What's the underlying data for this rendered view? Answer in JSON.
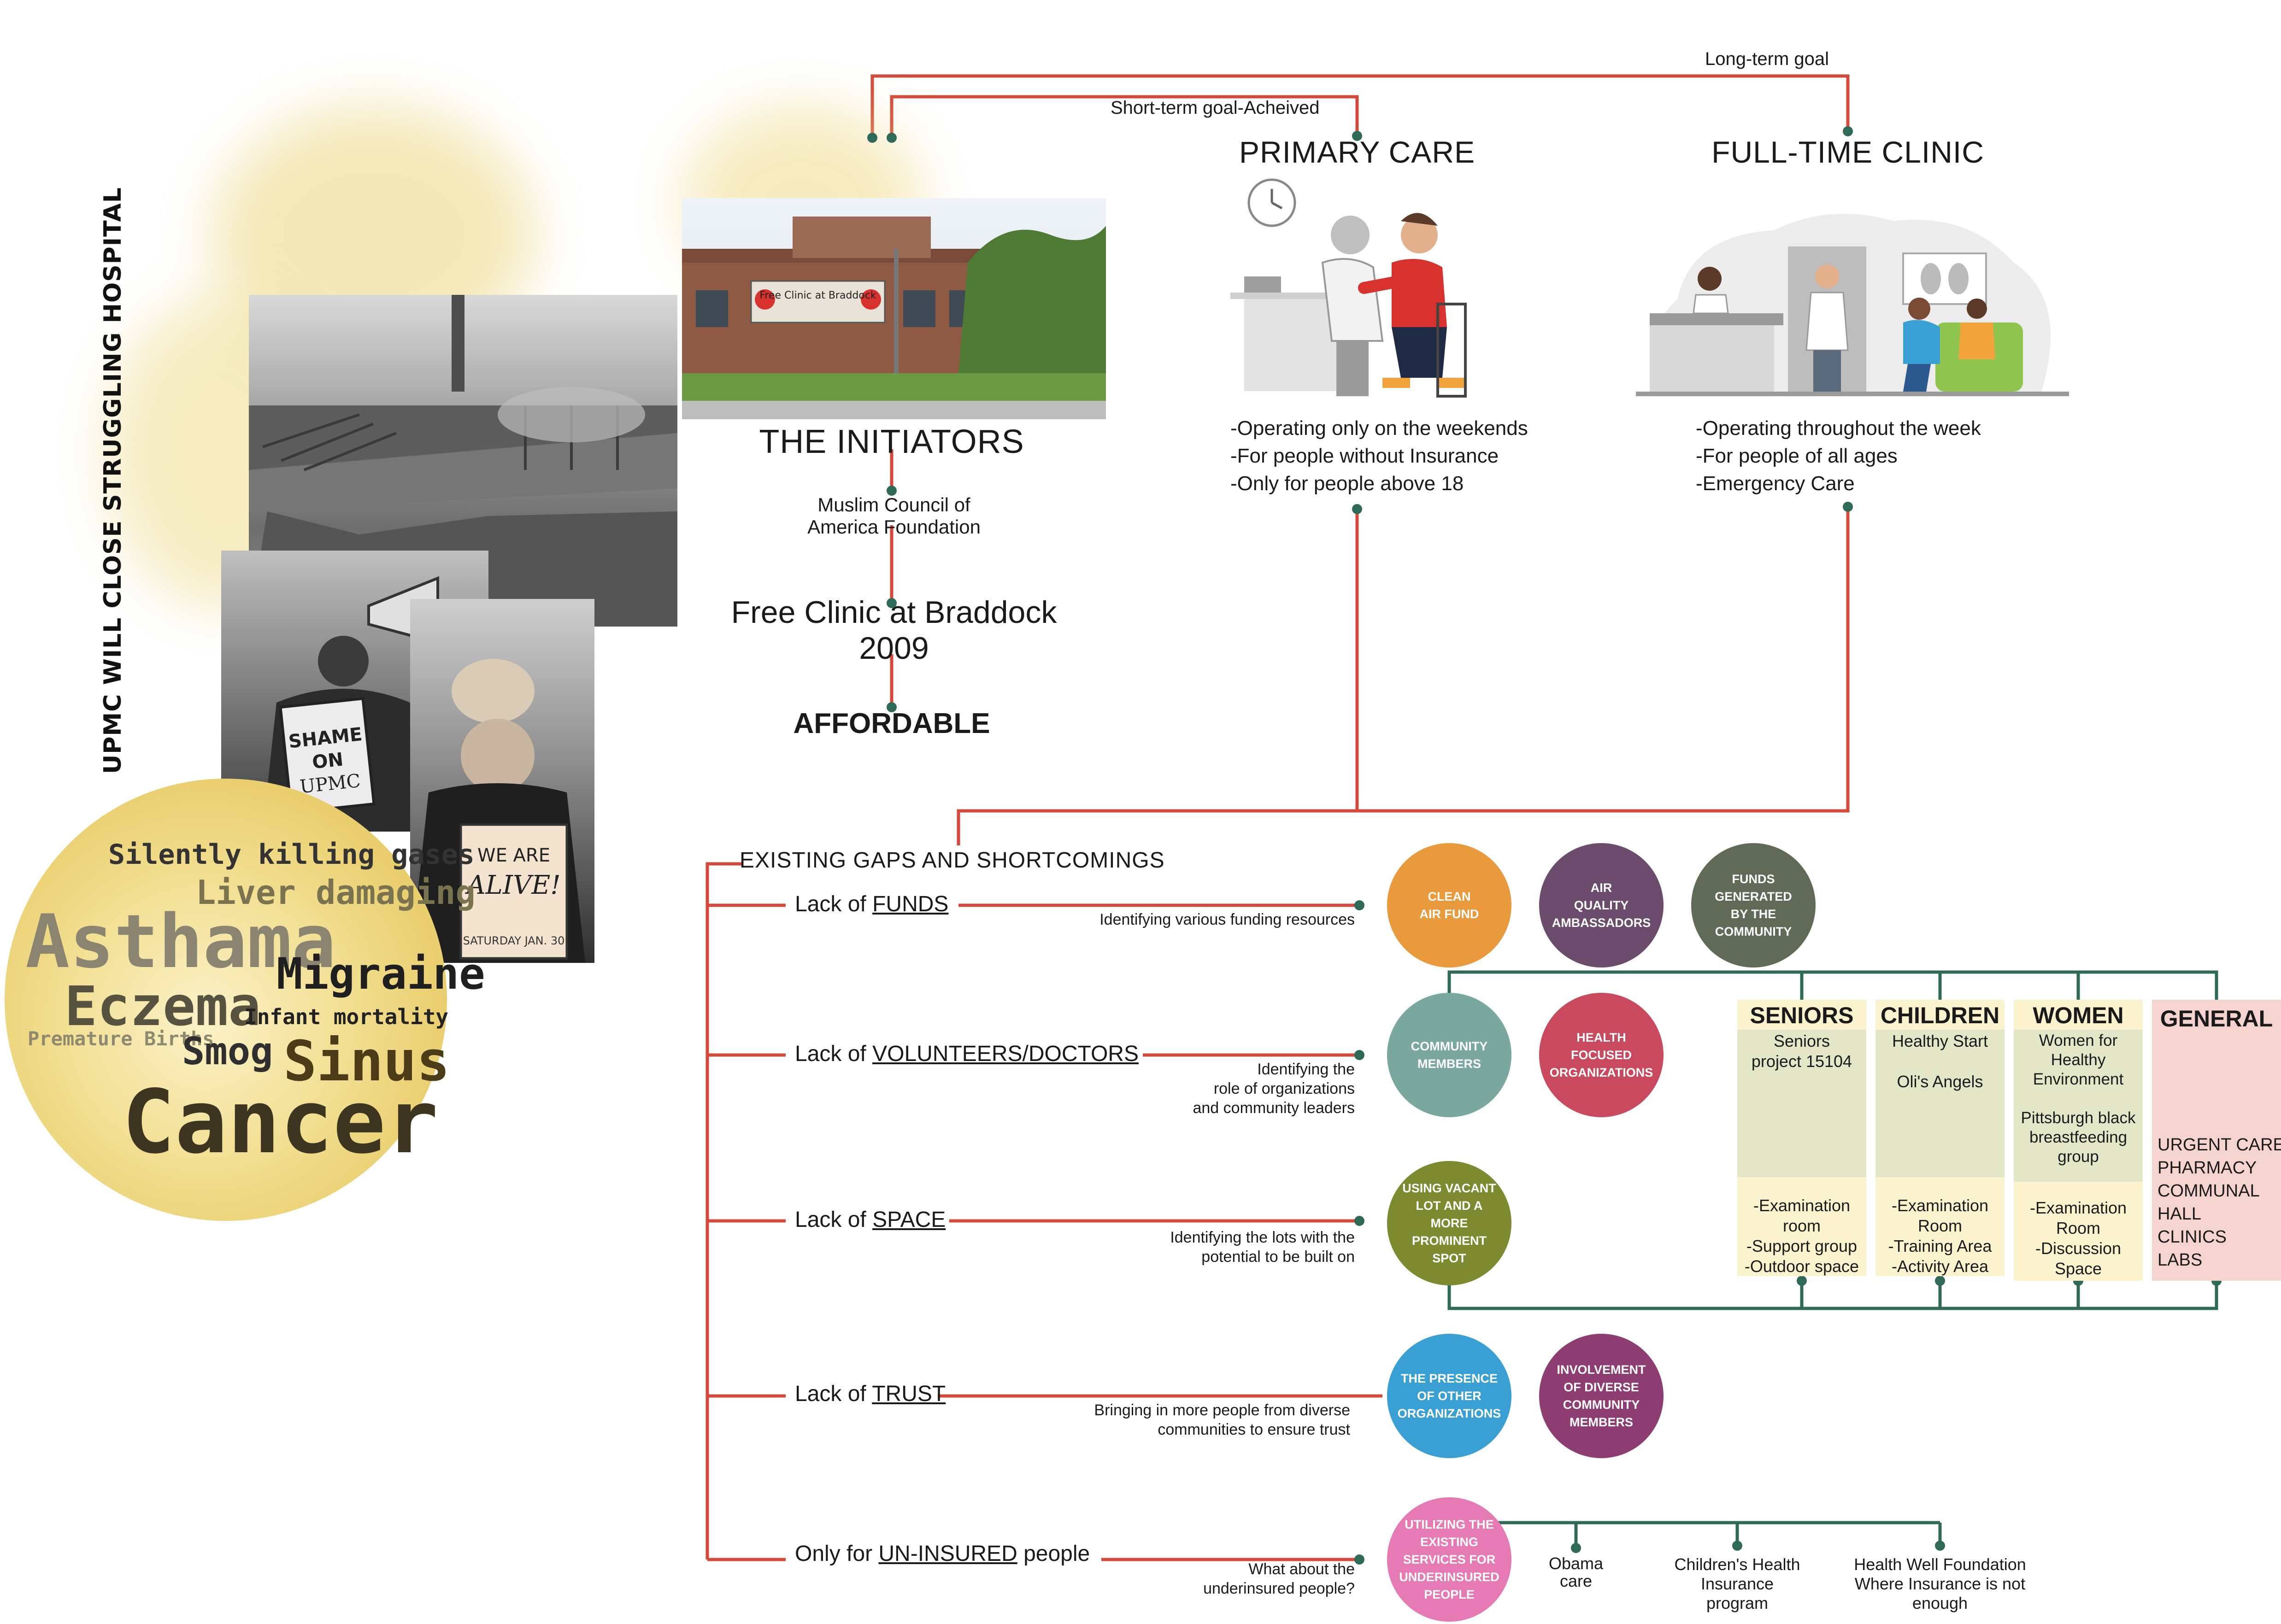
{
  "colors": {
    "red_line": "#d4493a",
    "green_line": "#2f6a58",
    "dot": "#2f6a58",
    "orange": "#e99a3c",
    "purple": "#6b4c6d",
    "gray_green": "#5f6a57",
    "teal": "#7aa89f",
    "crimson": "#c94a5e",
    "olive": "#7d8a2f",
    "blue": "#3aa0d3",
    "magenta": "#8e3d72",
    "pink": "#e67ab4",
    "group_green": "#e3e7c8",
    "group_cream": "#fbf3cd",
    "group_pink": "#f5d4d0"
  },
  "collage": {
    "headline": "UPMC WILL CLOSE STRUGGLING HOSPITAL",
    "sign_shame": "SHAME ON UPMC",
    "sign_alive": "WE ARE ALIVE!",
    "clinic_sign": "Free Clinic at Braddock",
    "words": [
      "Silently killing gases",
      "Liver damaging",
      "Asthama",
      "Migraine",
      "Eczema",
      "Infant mortality",
      "Premature Births",
      "Smog",
      "Sinus",
      "Cancer"
    ]
  },
  "goals": {
    "long_term": "Long-term goal",
    "short_term": "Short-term goal-Acheived"
  },
  "initiators": {
    "title": "THE INITIATORS",
    "org": "Muslim Council of\nAmerica Foundation",
    "clinic": "Free Clinic at Braddock",
    "year": "2009",
    "tag": "AFFORDABLE"
  },
  "primary_care": {
    "title": "PRIMARY CARE",
    "items": "-Operating only on the weekends\n-For people without Insurance\n-Only for people above 18"
  },
  "full_time": {
    "title": "FULL-TIME CLINIC",
    "items": "-Operating throughout the week\n-For people of all ages\n-Emergency Care"
  },
  "gaps": {
    "title": "EXISTING GAPS AND SHORTCOMINGS",
    "rows": [
      {
        "prefix": "Lack of ",
        "key": "FUNDS",
        "suffix": "",
        "note": "Identifying various funding resources"
      },
      {
        "prefix": "Lack of ",
        "key": "VOLUNTEERS/DOCTORS",
        "suffix": "",
        "note": "Identifying the\nrole of organizations\nand community leaders"
      },
      {
        "prefix": "Lack of ",
        "key": "SPACE",
        "suffix": "",
        "note": "Identifying the lots with the\npotential to be built on"
      },
      {
        "prefix": "Lack of ",
        "key": "TRUST",
        "suffix": "",
        "note": "Bringing in more people from diverse\ncommunities to ensure trust"
      },
      {
        "prefix": "Only for ",
        "key": "UN-INSURED",
        "suffix": " people",
        "note": "What about the\nunderinsured people?"
      }
    ]
  },
  "bubbles": {
    "clean_air": "CLEAN\nAIR FUND",
    "air_quality": "AIR\nQUALITY\nAMBASSADORS",
    "funds_generated": "FUNDS\nGENERATED\nBY THE\nCOMMUNITY",
    "community_members": "COMMUNITY\nMEMBERS",
    "health_orgs": "HEALTH\nFOCUSED\nORGANIZATIONS",
    "vacant_lot": "USING VACANT\nLOT AND A\nMORE\nPROMINENT\nSPOT",
    "presence_orgs": "THE PRESENCE\nOF OTHER\nORGANIZATIONS",
    "diverse_members": "INVOLVEMENT\nOF DIVERSE\nCOMMUNITY\nMEMBERS",
    "existing_services": "UTILIZING THE\nEXISTING\nSERVICES FOR\nUNDERINSURED\nPEOPLE"
  },
  "groups": {
    "seniors": {
      "title": "SENIORS",
      "programs": "Seniors\nproject 15104",
      "spaces": "-Examination\nroom\n-Support group\n-Outdoor space"
    },
    "children": {
      "title": "CHILDREN",
      "programs": "Healthy Start\n\nOli's Angels",
      "spaces": "-Examination\nRoom\n-Training Area\n-Activity Area"
    },
    "women": {
      "title": "WOMEN",
      "programs": "Women for\nHealthy\nEnvironment\n\nPittsburgh black\nbreastfeeding\ngroup",
      "spaces": "-Examination\nRoom\n-Discussion\nSpace"
    },
    "general": {
      "title": "GENERAL",
      "programs": "URGENT CARE\nPHARMACY\nCOMMUNAL\nHALL\nCLINICS\nLABS"
    }
  },
  "services": {
    "obama": "Obama\ncare",
    "chip": "Children's Health\nInsurance\nprogram",
    "hwf": "Health Well Foundation\nWhere Insurance is not\nenough"
  }
}
